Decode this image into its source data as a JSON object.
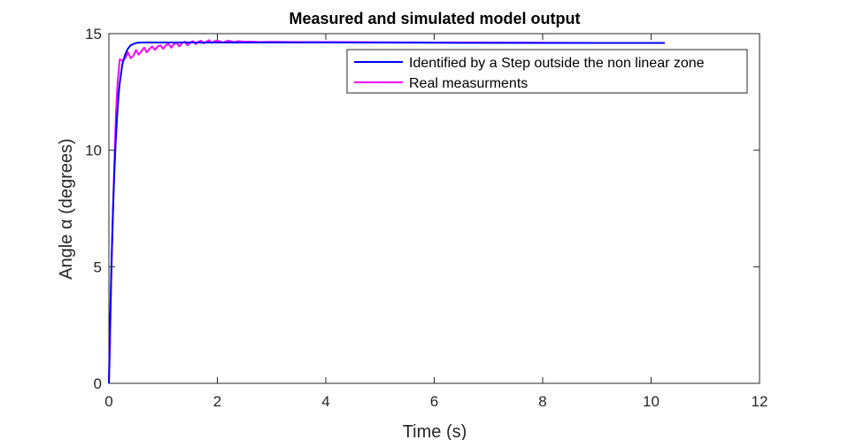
{
  "chart_data": {
    "type": "line",
    "title": "Measured and simulated model output",
    "xlabel": "Time (s)",
    "ylabel": "Angle α (degrees)",
    "xlim": [
      0,
      12
    ],
    "ylim": [
      0,
      15
    ],
    "xticks": [
      0,
      2,
      4,
      6,
      8,
      10,
      12
    ],
    "yticks": [
      0,
      5,
      10,
      15
    ],
    "grid": false,
    "legend_position": "top-right",
    "series": [
      {
        "name": "Identified by a Step outside the non linear zone",
        "color": "#0000ff",
        "x": [
          0,
          0.02,
          0.05,
          0.08,
          0.1,
          0.13,
          0.15,
          0.18,
          0.2,
          0.25,
          0.3,
          0.35,
          0.4,
          0.5,
          0.6,
          0.8,
          1.0,
          2.0,
          4.0,
          6.0,
          8.0,
          10.25
        ],
        "y": [
          0,
          2.4,
          5.4,
          7.7,
          9.0,
          10.6,
          11.4,
          12.4,
          12.9,
          13.7,
          14.1,
          14.35,
          14.5,
          14.6,
          14.62,
          14.62,
          14.62,
          14.62,
          14.62,
          14.61,
          14.6,
          14.6
        ]
      },
      {
        "name": "Real measurments",
        "color": "#ff00ff",
        "x": [
          0,
          0.02,
          0.04,
          0.07,
          0.1,
          0.13,
          0.16,
          0.2,
          0.25,
          0.3,
          0.35,
          0.4,
          0.45,
          0.5,
          0.55,
          0.6,
          0.65,
          0.7,
          0.75,
          0.8,
          0.85,
          0.9,
          0.95,
          1.0,
          1.05,
          1.1,
          1.15,
          1.2,
          1.25,
          1.3,
          1.35,
          1.4,
          1.45,
          1.5,
          1.55,
          1.6,
          1.65,
          1.7,
          1.75,
          1.8,
          1.85,
          1.9,
          1.95,
          2.0,
          2.1,
          2.2,
          2.3,
          2.4,
          2.5,
          2.6,
          2.8,
          3.0,
          3.5,
          4.0,
          5.0,
          6.0,
          7.0,
          8.0,
          9.0,
          10.25
        ],
        "y": [
          0,
          1.5,
          4.2,
          7.0,
          9.3,
          11.6,
          12.9,
          13.9,
          13.85,
          13.95,
          14.2,
          13.95,
          14.05,
          14.3,
          14.1,
          14.25,
          14.4,
          14.2,
          14.35,
          14.45,
          14.3,
          14.45,
          14.5,
          14.35,
          14.5,
          14.55,
          14.4,
          14.55,
          14.6,
          14.45,
          14.6,
          14.65,
          14.5,
          14.62,
          14.68,
          14.55,
          14.65,
          14.7,
          14.58,
          14.66,
          14.72,
          14.6,
          14.68,
          14.7,
          14.62,
          14.7,
          14.64,
          14.68,
          14.65,
          14.66,
          14.64,
          14.65,
          14.64,
          14.64,
          14.63,
          14.62,
          14.62,
          14.61,
          14.6,
          14.6
        ]
      }
    ]
  }
}
